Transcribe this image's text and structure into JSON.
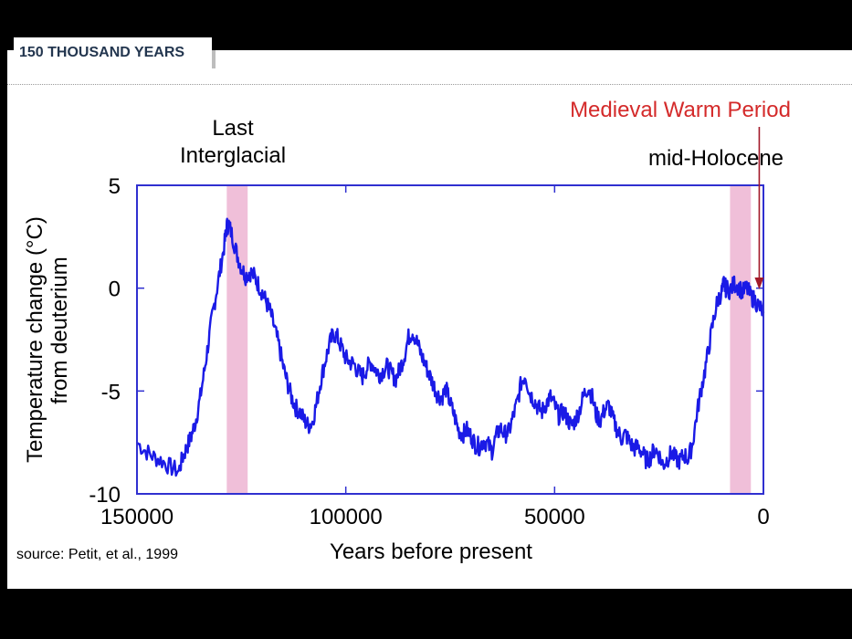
{
  "header": {
    "title": "150 THOUSAND YEARS"
  },
  "source": "source: Petit, et al., 1999",
  "chart_data": {
    "type": "line",
    "title": "",
    "xlabel": "Years before present",
    "ylabel_line1": "Temperature change (°C)",
    "ylabel_line2": "from deuterium",
    "xlim": [
      150000,
      0
    ],
    "ylim": [
      -10,
      5
    ],
    "xticks": [
      150000,
      100000,
      50000,
      0
    ],
    "xtick_labels": [
      "150000",
      "100000",
      "50000",
      "0"
    ],
    "yticks": [
      5,
      0,
      -5,
      -10
    ],
    "ytick_labels": [
      "5",
      "0",
      "-5",
      "-10"
    ],
    "grid": false,
    "line_color": "#1a1ae6",
    "series": [
      {
        "x": [
          150000,
          148000,
          146000,
          144000,
          142000,
          140000,
          139000,
          138000,
          137000,
          136000,
          135000,
          134000,
          133000,
          132000,
          131000,
          130000,
          129000,
          128500,
          128000,
          127000,
          126000,
          125000,
          124000,
          123000,
          122000,
          121000,
          120000,
          119000,
          118000,
          117000,
          116000,
          115000,
          114000,
          113000,
          112000,
          111000,
          110000,
          109000,
          108000,
          107000,
          106000,
          105000,
          104000,
          103000,
          102000,
          101000,
          100000,
          99000,
          98000,
          97000,
          96000,
          95000,
          94000,
          93000,
          92000,
          91000,
          90000,
          89000,
          88000,
          87000,
          86000,
          85000,
          84000,
          83000,
          82000,
          81000,
          80000,
          79000,
          78000,
          77000,
          76000,
          75000,
          74000,
          73000,
          72000,
          71000,
          70000,
          69000,
          68000,
          67000,
          66000,
          65000,
          64000,
          63000,
          62000,
          61000,
          60000,
          59000,
          58000,
          57000,
          56000,
          55000,
          54000,
          53000,
          52000,
          51000,
          50000,
          49000,
          48000,
          47000,
          46000,
          45000,
          44000,
          43000,
          42000,
          41000,
          40000,
          39000,
          38000,
          37000,
          36000,
          35000,
          34000,
          33000,
          32000,
          31000,
          30000,
          29000,
          28000,
          27000,
          26000,
          25000,
          24000,
          23000,
          22000,
          21000,
          20000,
          19000,
          18000,
          17000,
          16000,
          15000,
          14000,
          13000,
          12000,
          11000,
          10000,
          9500,
          9000,
          8000,
          7000,
          6000,
          5000,
          4000,
          3000,
          2000,
          1000,
          0
        ],
        "y": [
          -7.5,
          -7.9,
          -8.2,
          -8.4,
          -8.7,
          -8.9,
          -8.2,
          -7.7,
          -7.2,
          -6.5,
          -5.5,
          -4.2,
          -2.8,
          -1.4,
          -0.2,
          1.0,
          2.2,
          3.0,
          3.1,
          2.4,
          1.6,
          1.0,
          0.6,
          0.8,
          0.6,
          0.2,
          -0.2,
          -0.7,
          -1.2,
          -2.0,
          -2.8,
          -3.8,
          -4.6,
          -5.3,
          -5.8,
          -6.0,
          -6.4,
          -6.7,
          -6.5,
          -5.6,
          -4.5,
          -3.6,
          -2.8,
          -2.2,
          -2.4,
          -2.9,
          -3.4,
          -3.6,
          -3.7,
          -4.1,
          -4.3,
          -3.9,
          -3.6,
          -3.9,
          -4.2,
          -4.0,
          -3.8,
          -4.2,
          -4.4,
          -3.9,
          -3.3,
          -2.4,
          -2.1,
          -2.6,
          -3.2,
          -3.7,
          -4.2,
          -4.7,
          -5.2,
          -5.3,
          -4.9,
          -5.6,
          -6.2,
          -6.9,
          -7.1,
          -6.9,
          -7.2,
          -7.6,
          -7.7,
          -7.4,
          -7.6,
          -7.9,
          -7.2,
          -6.8,
          -7.1,
          -7.0,
          -6.3,
          -5.6,
          -4.6,
          -4.2,
          -5.1,
          -5.4,
          -5.8,
          -6.0,
          -5.6,
          -5.3,
          -5.7,
          -6.2,
          -6.0,
          -6.3,
          -6.7,
          -6.4,
          -5.9,
          -5.2,
          -4.8,
          -5.3,
          -6.2,
          -6.4,
          -5.9,
          -5.7,
          -6.4,
          -6.9,
          -7.3,
          -7.1,
          -7.5,
          -7.8,
          -7.7,
          -8.0,
          -8.4,
          -8.2,
          -7.8,
          -8.1,
          -8.6,
          -8.3,
          -8.0,
          -8.3,
          -8.4,
          -8.1,
          -8.3,
          -7.6,
          -6.2,
          -5.0,
          -4.0,
          -2.8,
          -1.6,
          -0.6,
          -0.2,
          0.2,
          0.0,
          -0.1,
          0.2,
          0.1,
          -0.2,
          0.0,
          -0.4,
          -0.6,
          -0.9,
          -1.2
        ]
      }
    ],
    "annotations": {
      "last_interglacial_line1": "Last",
      "last_interglacial_line2": "Interglacial",
      "mid_holocene": "mid-Holocene",
      "medieval_warm_period": "Medieval Warm Period",
      "medieval_color": "#d42a2a",
      "arrow_color": "#a31a2a",
      "band_color": "#f0bfd9"
    },
    "bands": [
      {
        "x_from": 128500,
        "x_to": 123500
      },
      {
        "x_from": 8000,
        "x_to": 3000
      }
    ],
    "medieval_arrow_x": 1000
  }
}
